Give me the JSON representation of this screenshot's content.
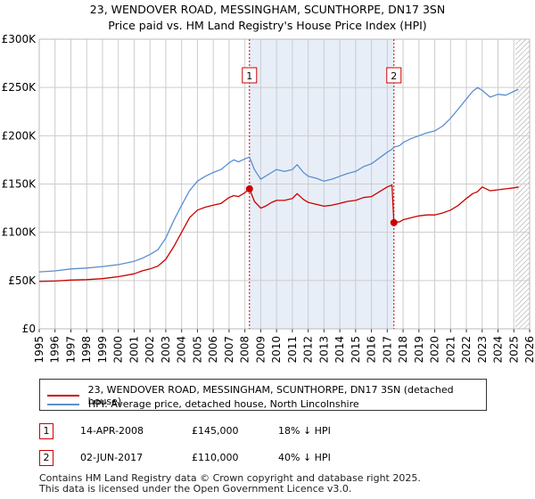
{
  "title_line1": "23, WENDOVER ROAD, MESSINGHAM, SCUNTHORPE, DN17 3SN",
  "title_line2": "Price paid vs. HM Land Registry's House Price Index (HPI)",
  "chart_data": {
    "type": "line",
    "title": "23, WENDOVER ROAD, MESSINGHAM, SCUNTHORPE, DN17 3SN — Price paid vs. HM Land Registry's House Price Index (HPI)",
    "xlabel": "",
    "ylabel": "",
    "xlim": [
      1995,
      2026
    ],
    "ylim": [
      0,
      300000
    ],
    "x_ticks": [
      1995,
      1996,
      1997,
      1998,
      1999,
      2000,
      2001,
      2002,
      2003,
      2004,
      2005,
      2006,
      2007,
      2008,
      2009,
      2010,
      2011,
      2012,
      2013,
      2014,
      2015,
      2016,
      2017,
      2018,
      2019,
      2020,
      2021,
      2022,
      2023,
      2024,
      2025,
      2026
    ],
    "y_ticks": [
      {
        "value": 0,
        "label": "£0"
      },
      {
        "value": 50000,
        "label": "£50K"
      },
      {
        "value": 100000,
        "label": "£100K"
      },
      {
        "value": 150000,
        "label": "£150K"
      },
      {
        "value": 200000,
        "label": "£200K"
      },
      {
        "value": 250000,
        "label": "£250K"
      },
      {
        "value": 300000,
        "label": "£300K"
      }
    ],
    "grid": true,
    "colors": {
      "price": "#cc0000",
      "hpi": "#5a8fd0",
      "shade": "#e8eef8",
      "grid": "#cccccc",
      "marker": "#cc0000"
    },
    "shaded_span": [
      2008.29,
      2017.42
    ],
    "hatched_from": 2025.1,
    "series": [
      {
        "name": "23, WENDOVER ROAD, MESSINGHAM, SCUNTHORPE, DN17 3SN (detached house)",
        "x": [
          1995,
          1996,
          1997,
          1998,
          1999,
          2000,
          2001,
          2001.5,
          2002,
          2002.5,
          2003,
          2003.5,
          2004,
          2004.5,
          2005,
          2005.5,
          2006,
          2006.5,
          2007,
          2007.3,
          2007.6,
          2008.0,
          2008.29,
          2008.6,
          2009.0,
          2009.3,
          2009.7,
          2010.0,
          2010.5,
          2011.0,
          2011.3,
          2011.7,
          2012.0,
          2012.5,
          2013.0,
          2013.5,
          2014.0,
          2014.5,
          2015.0,
          2015.5,
          2016.0,
          2016.5,
          2017.0,
          2017.3,
          2017.42,
          2017.8,
          2018.0,
          2018.5,
          2019.0,
          2019.5,
          2020.0,
          2020.5,
          2021.0,
          2021.5,
          2022.0,
          2022.4,
          2022.7,
          2023.0,
          2023.5,
          2024.0,
          2024.5,
          2025.0,
          2025.3
        ],
        "values": [
          49000,
          49500,
          50500,
          51000,
          52000,
          54000,
          57000,
          60000,
          62000,
          65000,
          72000,
          85000,
          100000,
          115000,
          123000,
          126000,
          128000,
          130000,
          136000,
          138000,
          137000,
          141000,
          145000,
          132000,
          125000,
          127000,
          131000,
          133000,
          133000,
          135000,
          140000,
          134000,
          131000,
          129000,
          127000,
          128000,
          130000,
          132000,
          133000,
          136000,
          137000,
          142000,
          147000,
          149000,
          110000,
          111000,
          113000,
          115000,
          117000,
          118000,
          118000,
          120000,
          123000,
          128000,
          135000,
          140000,
          142000,
          147000,
          143000,
          144000,
          145000,
          146000,
          147000
        ]
      },
      {
        "name": "HPI: Average price, detached house, North Lincolnshire",
        "x": [
          1995,
          1996,
          1997,
          1998,
          1999,
          2000,
          2001,
          2001.5,
          2002,
          2002.5,
          2003,
          2003.5,
          2004,
          2004.5,
          2005,
          2005.5,
          2006,
          2006.5,
          2007,
          2007.3,
          2007.6,
          2008.0,
          2008.29,
          2008.6,
          2009.0,
          2009.3,
          2009.7,
          2010.0,
          2010.5,
          2011.0,
          2011.3,
          2011.7,
          2012.0,
          2012.5,
          2013.0,
          2013.5,
          2014.0,
          2014.5,
          2015.0,
          2015.5,
          2016.0,
          2016.5,
          2017.0,
          2017.3,
          2017.42,
          2017.8,
          2018.0,
          2018.5,
          2019.0,
          2019.5,
          2020.0,
          2020.5,
          2021.0,
          2021.5,
          2022.0,
          2022.4,
          2022.7,
          2023.0,
          2023.5,
          2024.0,
          2024.5,
          2025.0,
          2025.3
        ],
        "values": [
          59000,
          60000,
          62000,
          63000,
          64500,
          66500,
          70000,
          73000,
          77000,
          82000,
          94000,
          112000,
          128000,
          143000,
          153000,
          158000,
          162000,
          165000,
          172000,
          175000,
          173000,
          176000,
          178000,
          165000,
          155000,
          158000,
          162000,
          165000,
          163000,
          165000,
          170000,
          162000,
          158000,
          156000,
          153000,
          155000,
          158000,
          161000,
          163000,
          168000,
          171000,
          177000,
          183000,
          186000,
          188000,
          190000,
          193000,
          197000,
          200000,
          203000,
          205000,
          210000,
          218000,
          228000,
          238000,
          246000,
          250000,
          247000,
          240000,
          243000,
          242000,
          246000,
          248000
        ]
      }
    ],
    "annotations": [
      {
        "label": "1",
        "x": 2008.29,
        "value": 145000
      },
      {
        "label": "2",
        "x": 2017.42,
        "value": 110000
      }
    ]
  },
  "legend": {
    "price_label": "23, WENDOVER ROAD, MESSINGHAM, SCUNTHORPE, DN17 3SN (detached house)",
    "hpi_label": "HPI: Average price, detached house, North Lincolnshire"
  },
  "transactions": [
    {
      "num": "1",
      "date": "14-APR-2008",
      "price": "£145,000",
      "delta": "18% ↓ HPI"
    },
    {
      "num": "2",
      "date": "02-JUN-2017",
      "price": "£110,000",
      "delta": "40% ↓ HPI"
    }
  ],
  "footer_line1": "Contains HM Land Registry data © Crown copyright and database right 2025.",
  "footer_line2": "This data is licensed under the Open Government Licence v3.0."
}
